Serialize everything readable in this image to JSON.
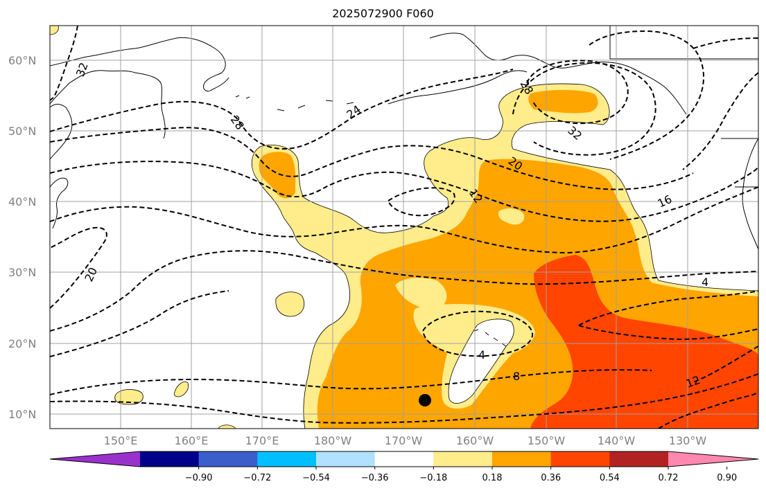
{
  "title": "2025072900 F060",
  "map": {
    "lat_labels": [
      "60°N",
      "50°N",
      "40°N",
      "30°N",
      "20°N",
      "10°N"
    ],
    "lon_labels": [
      "150°E",
      "160°E",
      "170°E",
      "180°W",
      "170°W",
      "160°W",
      "150°W",
      "140°W",
      "130°W"
    ],
    "contour_labels": [
      "32",
      "28",
      "24",
      "28",
      "32",
      "20",
      "12",
      "16",
      "20",
      "4",
      "4",
      "8",
      "12"
    ],
    "grid_color": "#a0a0a0",
    "contour_style": "dashed black",
    "marker": "black dot"
  },
  "colorbar": {
    "tick_labels": [
      "−0.90",
      "−0.72",
      "−0.54",
      "−0.36",
      "−0.18",
      "0.18",
      "0.36",
      "0.54",
      "0.72",
      "0.90"
    ],
    "colors": [
      "#9932cc",
      "#00008b",
      "#3a5fcd",
      "#00bfff",
      "#b0e2ff",
      "#ffffff",
      "#ffec8b",
      "#ffa500",
      "#ff4500",
      "#b22222",
      "#ff88b0"
    ],
    "extend": "both"
  }
}
